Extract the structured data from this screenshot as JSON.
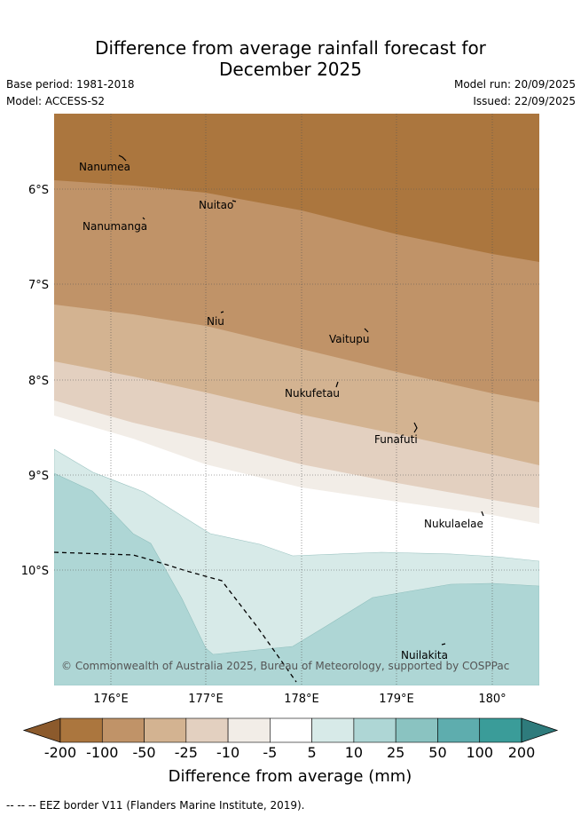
{
  "title": {
    "line1": "Difference from average rainfall forecast for",
    "line2": "December 2025"
  },
  "meta": {
    "base_period": "Base period: 1981-2018",
    "model": "Model: ACCESS-S2",
    "model_run": "Model run: 20/09/2025",
    "issued": "Issued: 22/09/2025"
  },
  "map": {
    "lon_labels": [
      "176°E",
      "177°E",
      "178°E",
      "179°E",
      "180°"
    ],
    "lat_labels": [
      "6°S",
      "7°S",
      "8°S",
      "9°S",
      "10°S"
    ],
    "places": [
      {
        "name": "Nanumea"
      },
      {
        "name": "Nuitao"
      },
      {
        "name": "Nanumanga"
      },
      {
        "name": "Niu"
      },
      {
        "name": "Vaitupu"
      },
      {
        "name": "Nukufetau"
      },
      {
        "name": "Funafuti"
      },
      {
        "name": "Nukulaelae"
      },
      {
        "name": "Nuilakita"
      }
    ],
    "credit": "© Commonwealth of Australia 2025, Bureau of Meteorology, supported by COSPPac"
  },
  "colorbar": {
    "ticks": [
      "-200",
      "-100",
      "-50",
      "-25",
      "-10",
      "-5",
      "5",
      "10",
      "25",
      "50",
      "100",
      "200"
    ],
    "colors": [
      "#8c5a2c",
      "#ab763e",
      "#c09368",
      "#d3b391",
      "#e3d0c0",
      "#f2ede7",
      "#ffffff",
      "#d7eae8",
      "#aed6d5",
      "#8ac3c1",
      "#5eadae",
      "#3a9c99",
      "#2e7b7c"
    ],
    "label": "Difference from average (mm)"
  },
  "footer": "--  --  -- EEZ border V11 (Flanders Marine Institute, 2019)."
}
